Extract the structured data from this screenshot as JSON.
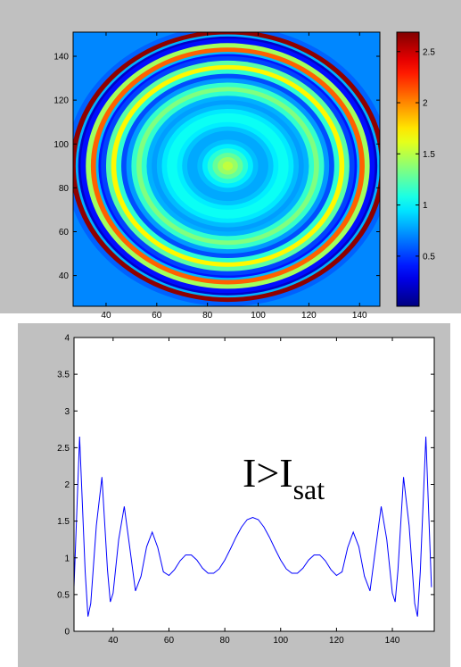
{
  "chart_data": [
    {
      "type": "heatmap",
      "colormap": "jet",
      "center": [
        88,
        90
      ],
      "r": [
        64,
        62,
        60,
        59,
        58,
        56,
        54,
        52,
        51,
        50,
        48,
        46,
        44,
        42,
        40,
        38,
        36,
        34,
        32,
        30,
        28,
        26,
        24,
        22,
        20,
        18,
        16,
        14,
        12,
        10,
        8,
        6,
        4,
        2,
        0
      ],
      "values": [
        0.6,
        2.65,
        0.81,
        0.2,
        0.38,
        1.44,
        2.1,
        0.83,
        0.4,
        0.52,
        1.25,
        1.7,
        1.13,
        0.55,
        0.75,
        1.15,
        1.35,
        1.14,
        0.81,
        0.76,
        0.84,
        0.96,
        1.04,
        1.04,
        0.97,
        0.86,
        0.79,
        0.79,
        0.85,
        0.97,
        1.12,
        1.28,
        1.42,
        1.52,
        1.55
      ],
      "outside_value": 0.7,
      "xlim": [
        27,
        148
      ],
      "xticks": [
        40,
        60,
        80,
        100,
        120,
        140
      ],
      "ylim": [
        26,
        151
      ],
      "yticks": [
        40,
        60,
        80,
        100,
        120,
        140
      ],
      "colorbar": {
        "lim": [
          0.01,
          2.69
        ],
        "ticks": [
          0.5,
          1,
          1.5,
          2,
          2.5
        ]
      }
    },
    {
      "type": "line",
      "color": "#0000ff",
      "x": [
        26,
        28,
        30,
        31,
        32,
        34,
        36,
        38,
        39,
        40,
        42,
        44,
        46,
        48,
        50,
        52,
        54,
        56,
        58,
        60,
        62,
        64,
        66,
        68,
        70,
        72,
        74,
        76,
        78,
        80,
        82,
        84,
        86,
        88,
        90,
        92,
        94,
        96,
        98,
        100,
        102,
        104,
        106,
        108,
        110,
        112,
        114,
        116,
        118,
        120,
        122,
        124,
        126,
        128,
        130,
        132,
        134,
        136,
        138,
        140,
        141,
        142,
        144,
        146,
        148,
        149,
        150,
        152,
        154
      ],
      "values": [
        0.6,
        2.65,
        0.81,
        0.2,
        0.38,
        1.44,
        2.1,
        0.83,
        0.4,
        0.52,
        1.25,
        1.7,
        1.13,
        0.55,
        0.75,
        1.15,
        1.35,
        1.14,
        0.81,
        0.76,
        0.84,
        0.96,
        1.04,
        1.04,
        0.97,
        0.86,
        0.79,
        0.79,
        0.85,
        0.97,
        1.12,
        1.28,
        1.42,
        1.52,
        1.55,
        1.52,
        1.42,
        1.28,
        1.12,
        0.97,
        0.85,
        0.79,
        0.79,
        0.86,
        0.97,
        1.04,
        1.04,
        0.96,
        0.84,
        0.76,
        0.81,
        1.14,
        1.35,
        1.15,
        0.75,
        0.55,
        1.13,
        1.7,
        1.25,
        0.52,
        0.4,
        0.83,
        2.1,
        1.44,
        0.38,
        0.2,
        0.81,
        2.65,
        0.6
      ],
      "xlim": [
        26,
        155
      ],
      "xticks": [
        40,
        60,
        80,
        100,
        120,
        140
      ],
      "ylim": [
        0,
        4
      ],
      "yticks": [
        0,
        0.5,
        1,
        1.5,
        2,
        2.5,
        3,
        3.5,
        4
      ],
      "annotation": {
        "text": "I>I",
        "subscript": "sat"
      }
    }
  ]
}
